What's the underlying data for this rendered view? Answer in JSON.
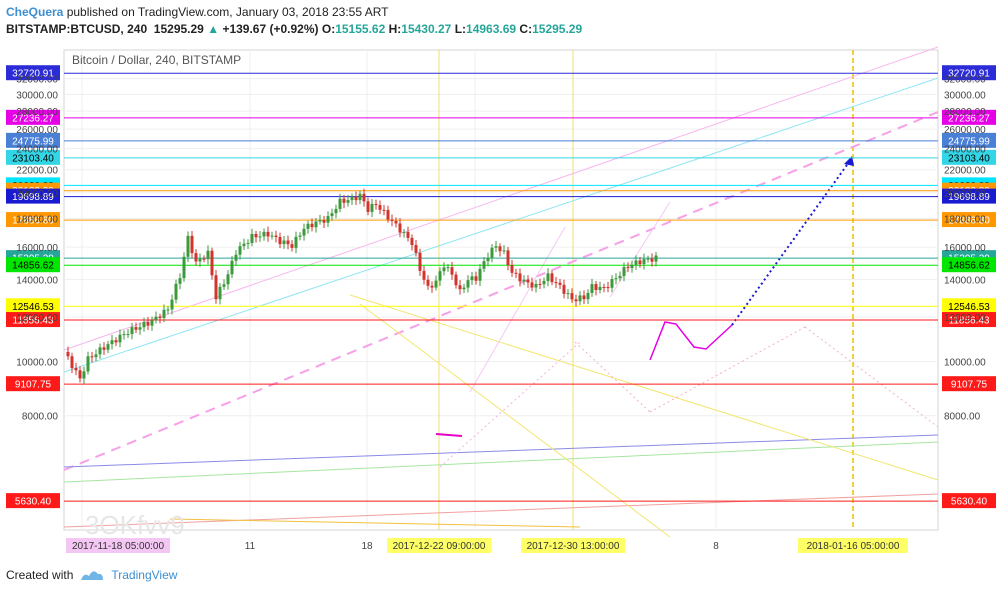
{
  "header": {
    "author": "CheQuera",
    "published": "published on TradingView.com, January 03, 2018 23:55 ART",
    "symbol": "BITSTAMP:BTCUSD, 240",
    "last": "15295.29",
    "change": "+139.67 (+0.92%)",
    "open_label": "O:",
    "open": "15155.62",
    "high_label": "H:",
    "high": "15430.27",
    "low_label": "L:",
    "low": "14963.69",
    "close_label": "C:",
    "close": "15295.29"
  },
  "footer": {
    "created_with": "Created with",
    "brand": "TradingView"
  },
  "chart_data": {
    "type": "candlestick",
    "title": "Bitcoin / Dollar, 240, BITSTAMP",
    "y_scale": "log",
    "ylim": [
      5000,
      36000
    ],
    "grid": true,
    "y_ticks": [
      8000,
      10000,
      12000,
      14000,
      16000,
      18000,
      20000,
      22000,
      24000,
      26000,
      28000,
      30000,
      32000
    ],
    "y_tick_labels": [
      "8000.00",
      "10000.00",
      "12000.00",
      "14000.00",
      "16000.00",
      "18000.00",
      "20000.00",
      "22000.00",
      "24000.00",
      "26000.00",
      "28000.00",
      "30000.00",
      "32000.00"
    ],
    "x_tick_labels": [
      "Dec",
      "11",
      "18",
      "25",
      "8"
    ],
    "x_highlight_labels": [
      "2017-11-18 05:00:00",
      "2017-12-22 09:00:00",
      "2017-12-30 13:00:00",
      "2018-01-16 05:00:00"
    ],
    "watermark": "3OKfvv9",
    "horizontal_levels": [
      {
        "value": 32720.91,
        "label": "32720.91",
        "color": "#2b2bd8"
      },
      {
        "value": 27236.27,
        "label": "27236.27",
        "color": "#e600e6"
      },
      {
        "value": 24775.99,
        "label": "24775.99",
        "color": "#4a7fd6"
      },
      {
        "value": 23103.4,
        "label": "23103.40",
        "color": "#33d6e6"
      },
      {
        "value": 20630.88,
        "label": "20630.88",
        "color": "#00e5ff"
      },
      {
        "value": 20182.89,
        "label": "20182.89",
        "color": "#ff9800"
      },
      {
        "value": 19698.89,
        "label": "19698.89",
        "color": "#1a1ad1"
      },
      {
        "value": 17886.8,
        "label": "17886.80",
        "color": "#ff9800"
      },
      {
        "value": 15295.29,
        "label": "15295.29",
        "color": "#26a69a"
      },
      {
        "value": 14856.62,
        "label": "14856.62",
        "color": "#00e600"
      },
      {
        "value": 12546.53,
        "label": "12546.53",
        "color": "#ffff00"
      },
      {
        "value": 11856.43,
        "label": "11856.43",
        "color": "#ff1a1a"
      },
      {
        "value": 9107.75,
        "label": "9107.75",
        "color": "#ff1a1a"
      },
      {
        "value": 5630.4,
        "label": "5630.40",
        "color": "#ff1a1a"
      }
    ],
    "price_path": [
      [
        0,
        10400
      ],
      [
        4,
        9300
      ],
      [
        6,
        10100
      ],
      [
        10,
        10600
      ],
      [
        16,
        11300
      ],
      [
        22,
        11800
      ],
      [
        26,
        12400
      ],
      [
        29,
        14200
      ],
      [
        31,
        16600
      ],
      [
        33,
        15000
      ],
      [
        36,
        15600
      ],
      [
        38,
        13000
      ],
      [
        41,
        14300
      ],
      [
        43,
        15700
      ],
      [
        47,
        16700
      ],
      [
        51,
        16900
      ],
      [
        54,
        16400
      ],
      [
        57,
        16100
      ],
      [
        60,
        17300
      ],
      [
        63,
        17700
      ],
      [
        66,
        18000
      ],
      [
        69,
        19300
      ],
      [
        72,
        19500
      ],
      [
        74,
        19800
      ],
      [
        76,
        18700
      ],
      [
        78,
        19100
      ],
      [
        81,
        18100
      ],
      [
        84,
        17200
      ],
      [
        87,
        16300
      ],
      [
        89,
        14600
      ],
      [
        91,
        13500
      ],
      [
        93,
        13900
      ],
      [
        95,
        14900
      ],
      [
        97,
        14300
      ],
      [
        99,
        13300
      ],
      [
        101,
        14000
      ],
      [
        103,
        14100
      ],
      [
        106,
        15500
      ],
      [
        108,
        16100
      ],
      [
        110,
        15600
      ],
      [
        112,
        14400
      ],
      [
        115,
        13900
      ],
      [
        118,
        13600
      ],
      [
        121,
        14200
      ],
      [
        124,
        13600
      ],
      [
        127,
        12900
      ],
      [
        130,
        13000
      ],
      [
        132,
        13600
      ],
      [
        135,
        13500
      ],
      [
        138,
        14100
      ],
      [
        141,
        14800
      ],
      [
        144,
        15100
      ],
      [
        146,
        15200
      ],
      [
        148,
        15295
      ]
    ]
  }
}
